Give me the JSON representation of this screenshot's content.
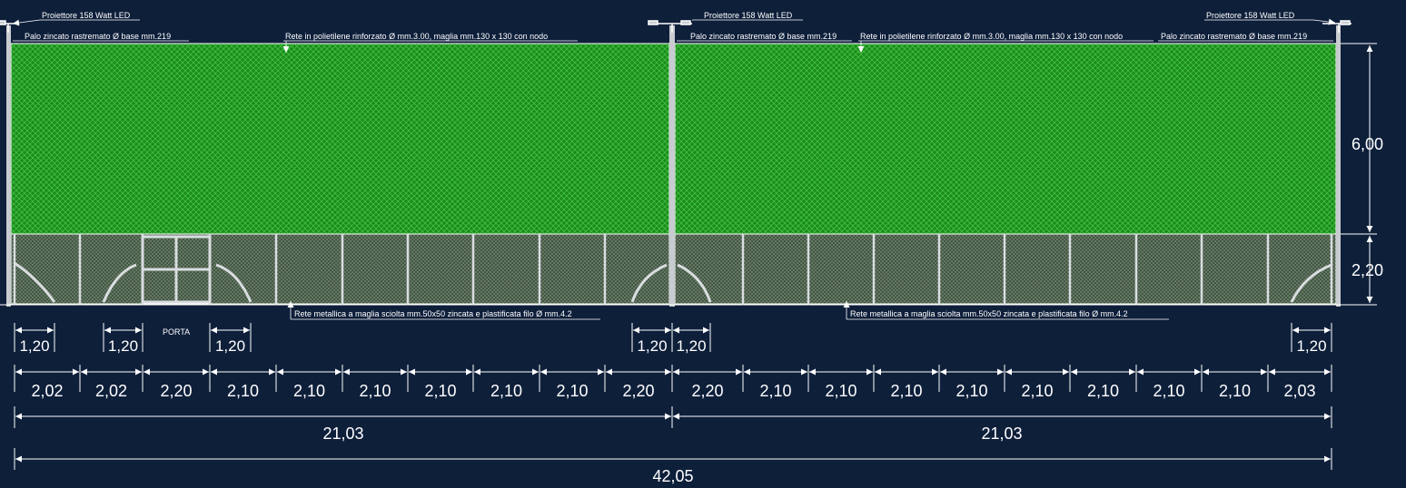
{
  "colors": {
    "background": "#0e1f3a",
    "upper_net": "#1d8a1d",
    "lower_net": "#55684f",
    "lines": "#ffffff",
    "pole": "#c8ccd0"
  },
  "labels": {
    "projector_left": "Proiettore 158 Watt LED",
    "projector_mid": "Proiettore 158 Watt LED",
    "projector_right": "Proiettore 158 Watt LED",
    "pole_left": "Palo zincato rastremato Ø base mm.219",
    "pole_mid": "Palo zincato rastremato Ø base mm.219",
    "pole_right": "Palo zincato rastremato Ø base mm.219",
    "net_upper_left": "Rete in polietilene rinforzato Ø mm.3.00, maglia mm.130 x 130 con nodo",
    "net_upper_right": "Rete in polietilene rinforzato Ø mm.3.00, maglia mm.130 x 130 con nodo",
    "net_lower_left": "Rete metallica a maglia sciolta mm.50x50 zincata e plastificata filo Ø mm.4.2",
    "net_lower_right": "Rete metallica a maglia sciolta mm.50x50 zincata e plastificata filo Ø mm.4.2",
    "door": "PORTA"
  },
  "dimensions": {
    "height_upper": "6,00",
    "height_lower": "2,20",
    "brace_widths": [
      "1,20",
      "1,20",
      "1,20",
      "1,20",
      "1,20",
      "1,20"
    ],
    "bays": [
      "2,02",
      "2,02",
      "2,20",
      "2,10",
      "2,10",
      "2,10",
      "2,10",
      "2,10",
      "2,10",
      "2,20",
      "2,20",
      "2,10",
      "2,10",
      "2,10",
      "2,10",
      "2,10",
      "2,10",
      "2,10",
      "2,10",
      "2,03"
    ],
    "halves": [
      "21,03",
      "21,03"
    ],
    "total": "42,05"
  }
}
